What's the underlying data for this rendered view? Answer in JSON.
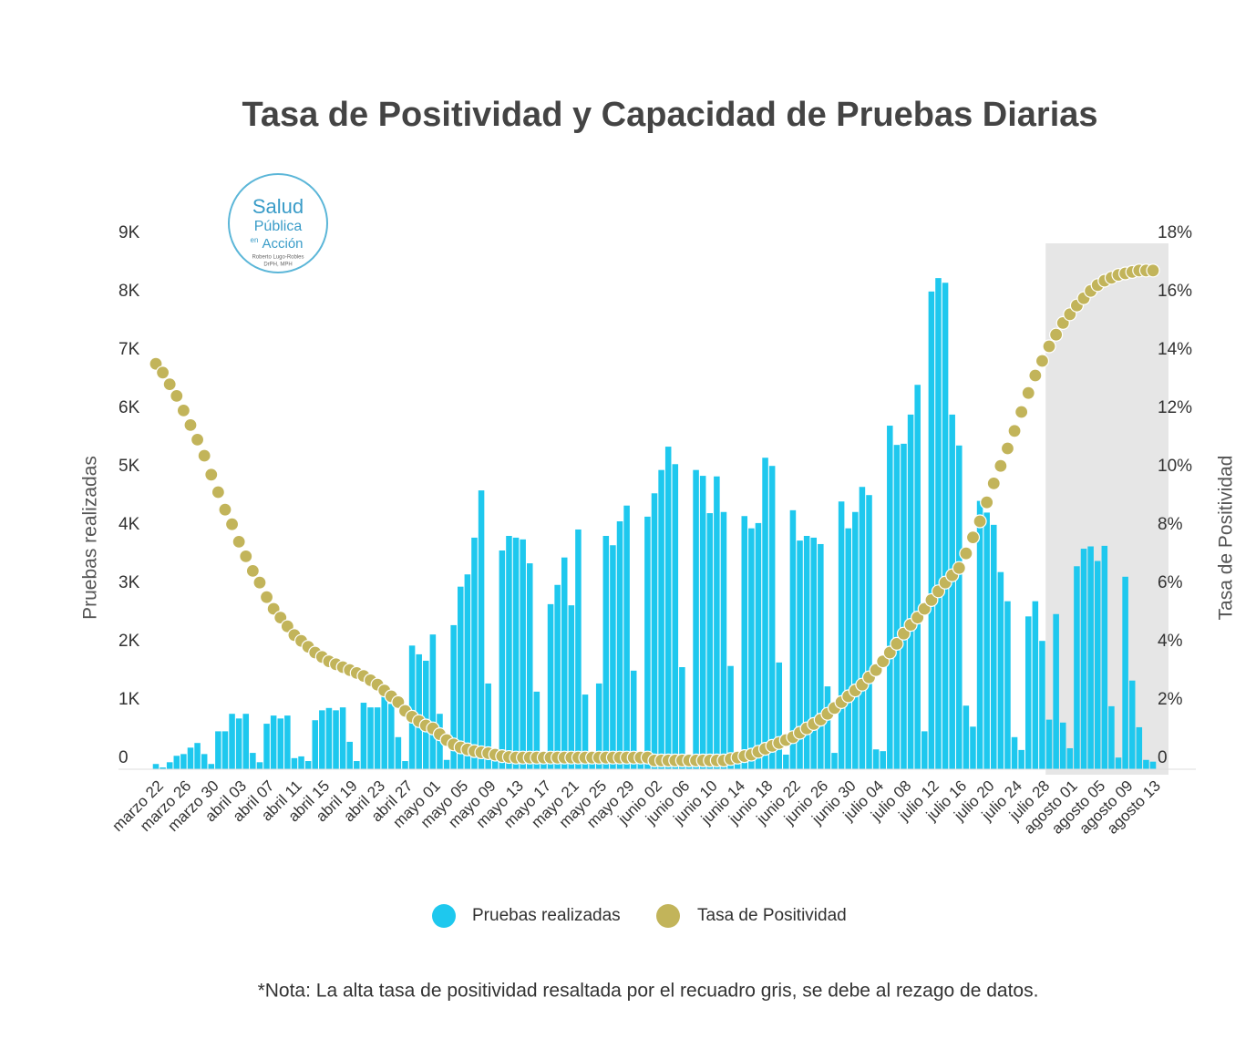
{
  "logo": {
    "line1": "Salud",
    "line2": "Pública",
    "line3": "en",
    "line4": "Acción",
    "line5": "Roberto Lugo-Robles",
    "line6": "DrPH, MPH"
  },
  "chart_data": {
    "type": "bar-dot",
    "title": "Tasa de Positividad  y Capacidad de Pruebas Diarias",
    "y_label": "Pruebas realizadas",
    "y2_label": "Tasa de Positividad",
    "note": "*Nota: La alta tasa de positividad resaltada por el recuadro gris, se debe al rezago de datos.",
    "shaded_from": 129,
    "shade_color": "#e6e6e6",
    "ylim": [
      0,
      9000
    ],
    "yticks": [
      0,
      {
        "value": 1000,
        "label": "1K"
      },
      {
        "value": 2000,
        "label": "2K"
      },
      {
        "value": 3000,
        "label": "3K"
      },
      {
        "value": 4000,
        "label": "4K"
      },
      {
        "value": 5000,
        "label": "5K"
      },
      {
        "value": 6000,
        "label": "6K"
      },
      {
        "value": 7000,
        "label": "7K"
      },
      {
        "value": 8000,
        "label": "8K"
      },
      {
        "value": 9000,
        "label": "9K"
      }
    ],
    "y2lim": [
      0,
      18
    ],
    "y2ticks": [
      0,
      {
        "value": 2,
        "label": "2%"
      },
      {
        "value": 4,
        "label": "4%"
      },
      {
        "value": 6,
        "label": "6%"
      },
      {
        "value": 8,
        "label": "8%"
      },
      {
        "value": 10,
        "label": "10%"
      },
      {
        "value": 12,
        "label": "12%"
      },
      {
        "value": 14,
        "label": "14%"
      },
      {
        "value": 16,
        "label": "16%"
      },
      {
        "value": 18,
        "label": "18%"
      }
    ],
    "categories": [
      "marzo 22",
      null,
      null,
      null,
      "marzo 26",
      null,
      null,
      null,
      "marzo 30",
      null,
      null,
      null,
      "abril 03",
      null,
      null,
      null,
      "abril 07",
      null,
      null,
      null,
      "abril 11",
      null,
      null,
      null,
      "abril 15",
      null,
      null,
      null,
      "abril 19",
      null,
      null,
      null,
      "abril 23",
      null,
      null,
      null,
      "abril 27",
      null,
      null,
      null,
      "mayo 01",
      null,
      null,
      null,
      "mayo 05",
      null,
      null,
      null,
      "mayo 09",
      null,
      null,
      null,
      "mayo 13",
      null,
      null,
      null,
      "mayo 17",
      null,
      null,
      null,
      "mayo 21",
      null,
      null,
      null,
      "mayo 25",
      null,
      null,
      null,
      "mayo 29",
      null,
      null,
      null,
      "junio 02",
      null,
      null,
      null,
      "junio 06",
      null,
      null,
      null,
      "junio 10",
      null,
      null,
      null,
      "junio 14",
      null,
      null,
      null,
      "junio 18",
      null,
      null,
      null,
      "junio 22",
      null,
      null,
      null,
      "junio 26",
      null,
      null,
      null,
      "junio 30",
      null,
      null,
      null,
      "julio 04",
      null,
      null,
      null,
      "julio 08",
      null,
      null,
      null,
      "julio 12",
      null,
      null,
      null,
      "julio 16",
      null,
      null,
      null,
      "julio 20",
      null,
      null,
      null,
      "julio 24",
      null,
      null,
      null,
      "julio 28",
      null,
      null,
      null,
      "agosto 01",
      null,
      null,
      null,
      "agosto 05",
      null,
      null,
      null,
      "agosto 09",
      null,
      null,
      null,
      "agosto 13"
    ],
    "series": [
      {
        "name": "Pruebas realizadas",
        "color": "#1ec8ee",
        "axis": "y",
        "values": [
          90,
          30,
          120,
          230,
          260,
          370,
          450,
          260,
          90,
          650,
          650,
          950,
          870,
          950,
          280,
          120,
          780,
          920,
          870,
          920,
          190,
          220,
          140,
          840,
          1010,
          1050,
          1010,
          1060,
          470,
          140,
          1140,
          1060,
          1060,
          1280,
          1120,
          550,
          140,
          2120,
          1970,
          1860,
          2310,
          950,
          160,
          2470,
          3130,
          3340,
          3970,
          4780,
          1470,
          220,
          3750,
          4000,
          3970,
          3940,
          3530,
          1330,
          140,
          2830,
          3160,
          3630,
          2810,
          4110,
          1280,
          140,
          1470,
          4000,
          3840,
          4250,
          4520,
          1690,
          140,
          4330,
          4730,
          5130,
          5530,
          5230,
          1750,
          140,
          5130,
          5030,
          4390,
          5020,
          4410,
          1770,
          140,
          4340,
          4130,
          4220,
          5340,
          5200,
          1830,
          250,
          4440,
          3920,
          4000,
          3970,
          3860,
          1420,
          280,
          4590,
          4130,
          4410,
          4840,
          4700,
          340,
          310,
          5890,
          5560,
          5580,
          6080,
          6590,
          650,
          8190,
          8420,
          8340,
          6080,
          5550,
          1090,
          730,
          4600,
          4400,
          4190,
          3380,
          2880,
          550,
          330,
          2620,
          2880,
          2200,
          850,
          2660,
          800,
          360,
          3480,
          3780,
          3820,
          3570,
          3830,
          1080,
          200,
          3300,
          1520,
          720,
          160,
          130
        ]
      },
      {
        "name": "Tasa de Positividad",
        "color": "#c2b45a",
        "axis": "y2",
        "values": [
          13.9,
          13.6,
          13.2,
          12.8,
          12.3,
          11.8,
          11.3,
          10.75,
          10.1,
          9.5,
          8.9,
          8.4,
          7.8,
          7.3,
          6.8,
          6.4,
          5.9,
          5.5,
          5.2,
          4.9,
          4.6,
          4.4,
          4.2,
          4.0,
          3.85,
          3.7,
          3.6,
          3.5,
          3.4,
          3.3,
          3.2,
          3.05,
          2.9,
          2.7,
          2.5,
          2.3,
          2.0,
          1.8,
          1.65,
          1.5,
          1.4,
          1.2,
          1.0,
          0.85,
          0.75,
          0.68,
          0.62,
          0.58,
          0.55,
          0.5,
          0.45,
          0.42,
          0.4,
          0.4,
          0.4,
          0.4,
          0.4,
          0.4,
          0.4,
          0.4,
          0.4,
          0.4,
          0.4,
          0.4,
          0.4,
          0.4,
          0.4,
          0.4,
          0.4,
          0.4,
          0.4,
          0.4,
          0.3,
          0.3,
          0.3,
          0.3,
          0.3,
          0.3,
          0.3,
          0.3,
          0.3,
          0.3,
          0.3,
          0.35,
          0.4,
          0.45,
          0.5,
          0.6,
          0.7,
          0.8,
          0.9,
          1.0,
          1.1,
          1.25,
          1.4,
          1.55,
          1.7,
          1.9,
          2.1,
          2.3,
          2.5,
          2.7,
          2.9,
          3.15,
          3.4,
          3.7,
          4.0,
          4.3,
          4.65,
          4.95,
          5.2,
          5.5,
          5.8,
          6.1,
          6.4,
          6.65,
          6.9,
          7.4,
          7.95,
          8.5,
          9.15,
          9.8,
          10.4,
          11.0,
          11.6,
          12.25,
          12.9,
          13.5,
          14.0,
          14.5,
          14.9,
          15.3,
          15.6,
          15.9,
          16.15,
          16.4,
          16.6,
          16.75,
          16.85,
          16.95,
          17.0,
          17.05,
          17.1,
          17.1,
          17.1
        ]
      }
    ]
  }
}
